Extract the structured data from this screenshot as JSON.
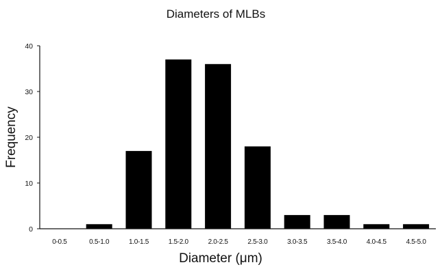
{
  "chart_data": {
    "type": "bar",
    "title": "Diameters of MLBs",
    "xlabel": "Diameter (μm)",
    "ylabel": "Frequency",
    "categories": [
      "0-0.5",
      "0.5-1.0",
      "1.0-1.5",
      "1.5-2.0",
      "2.0-2.5",
      "2.5-3.0",
      "3.0-3.5",
      "3.5-4.0",
      "4.0-4.5",
      "4.5-5.0"
    ],
    "values": [
      0,
      1,
      17,
      37,
      36,
      18,
      3,
      3,
      1,
      1
    ],
    "ylim": [
      0,
      40
    ],
    "yticks": [
      "0",
      "10",
      "20",
      "30",
      "40"
    ],
    "grid": false,
    "bar_color": "#000000"
  }
}
